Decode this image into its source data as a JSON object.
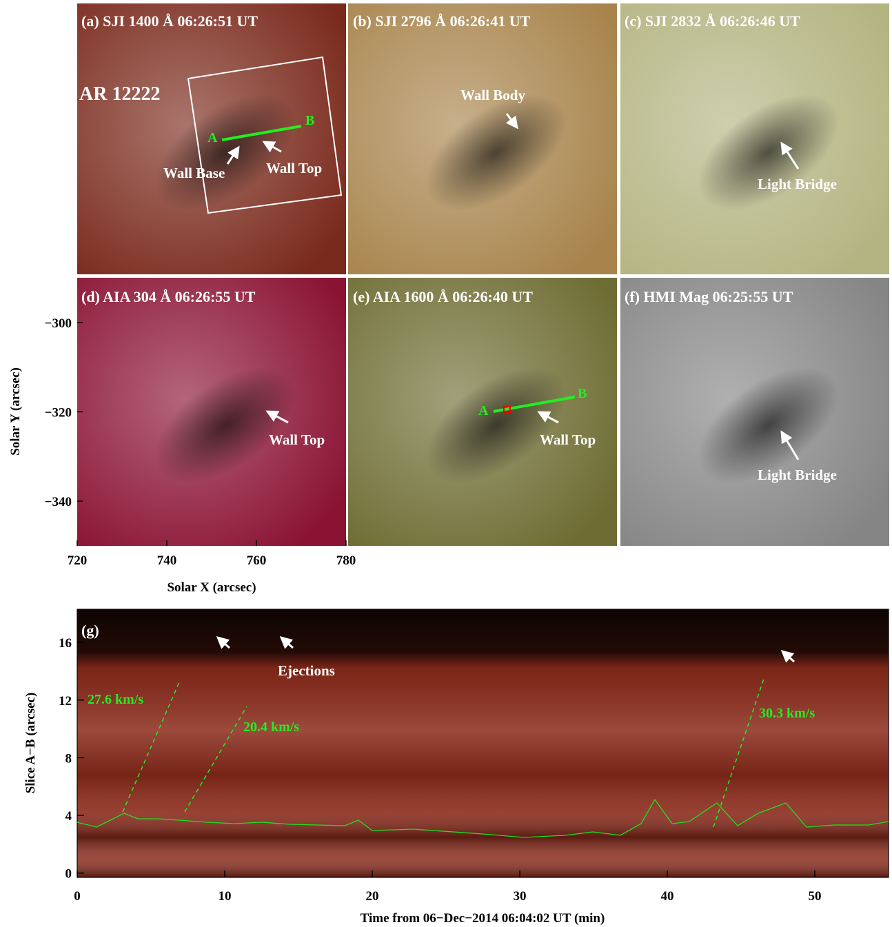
{
  "figure": {
    "panels": [
      {
        "label": "(a) SJI 1400 Å 06:26:51 UT",
        "color": "#7a2a1c",
        "annotations": [
          "AR 12222",
          "A",
          "B",
          "Wall Base",
          "Wall Top"
        ]
      },
      {
        "label": "(b) SJI 2796 Å 06:26:41 UT",
        "color": "#a8844c",
        "annotations": [
          "Wall Body"
        ]
      },
      {
        "label": "(c) SJI 2832 Å 06:26:46 UT",
        "color": "#b4b482",
        "annotations": [
          "Light Bridge"
        ]
      },
      {
        "label": "(d) AIA 304 Å 06:26:55 UT",
        "color": "#8a1232",
        "annotations": [
          "Wall Top"
        ]
      },
      {
        "label": "(e) AIA 1600 Å 06:26:40 UT",
        "color": "#6e6c32",
        "annotations": [
          "A",
          "B",
          "Wall Top"
        ]
      },
      {
        "label": "(f) HMI Mag 06:25:55 UT",
        "color": "#858585",
        "annotations": [
          "Light Bridge"
        ]
      }
    ],
    "xlabel": "Solar X (arcsec)",
    "ylabel": "Solar Y (arcsec)",
    "xlim": [
      720,
      780
    ],
    "ylim": [
      -350,
      -290
    ],
    "xticks": [
      720,
      740,
      760,
      780
    ],
    "yticks": [
      {
        "value": -300,
        "label": "−300"
      },
      {
        "value": -320,
        "label": "−320"
      },
      {
        "value": -340,
        "label": "−340"
      }
    ]
  },
  "slice": {
    "label": "(g)",
    "color": "#8a2a1a",
    "xlabel": "Time from 06−Dec−2014 06:04:02 UT (min)",
    "ylabel": "Slice A−B (arcsec)",
    "xlim": [
      0,
      55
    ],
    "ylim": [
      -0.3,
      18.3
    ],
    "xticks": [
      0,
      10,
      20,
      30,
      40,
      50
    ],
    "yticks": [
      0,
      4,
      8,
      12,
      16
    ],
    "annotations": [
      "Ejections",
      "27.6 km/s",
      "20.4 km/s",
      "30.3 km/s"
    ]
  }
}
